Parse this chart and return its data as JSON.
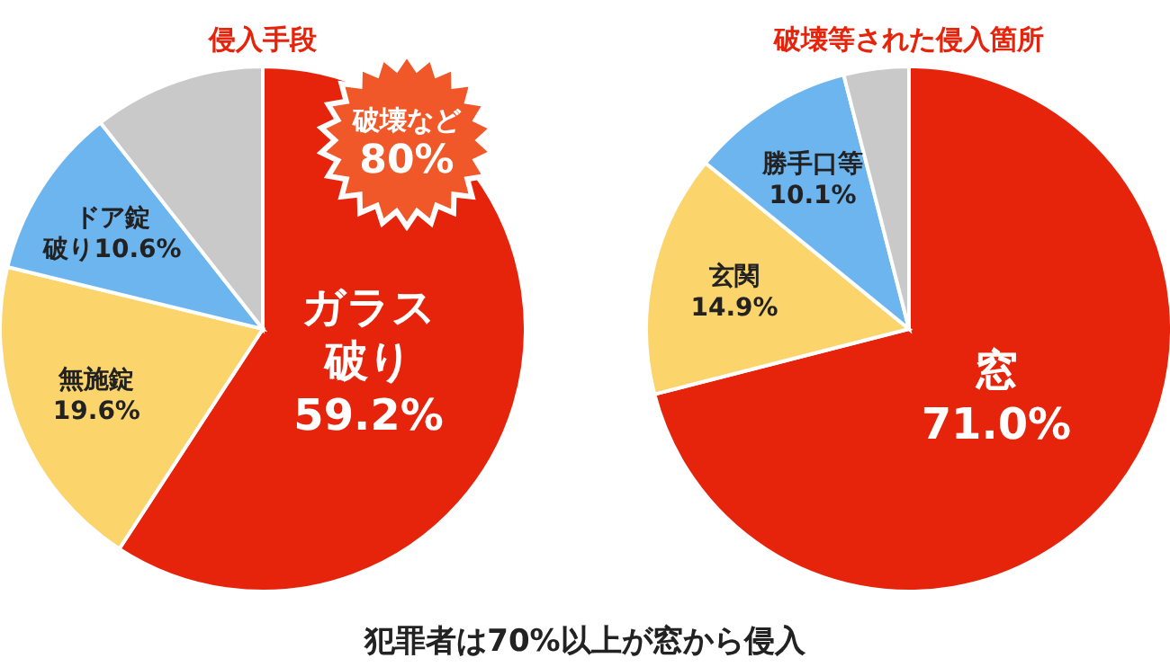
{
  "chart_data": [
    {
      "type": "pie",
      "title": "侵入手段",
      "categories": [
        "ガラス破り",
        "無施錠",
        "ドア錠破り",
        null
      ],
      "values": [
        59.2,
        19.6,
        10.6,
        10.6
      ],
      "value_labels": [
        "59.2%",
        "19.6%",
        "10.6%",
        null
      ],
      "colors": [
        "#e6240c",
        "#fbd46c",
        "#6db5ef",
        "#c9c9c9"
      ],
      "annotations": [
        "破壊など\n80%"
      ]
    },
    {
      "type": "pie",
      "title": "破壊等された侵入箇所",
      "categories": [
        "窓",
        "玄関",
        "勝手口等",
        null
      ],
      "values": [
        71.0,
        14.9,
        10.1,
        4.0
      ],
      "value_labels": [
        "71.0%",
        "14.9%",
        "10.1%",
        null
      ],
      "colors": [
        "#e6240c",
        "#fbd46c",
        "#6db5ef",
        "#c9c9c9"
      ],
      "annotations": [
        "犯罪者は70%以上が窓から侵入"
      ]
    }
  ]
}
